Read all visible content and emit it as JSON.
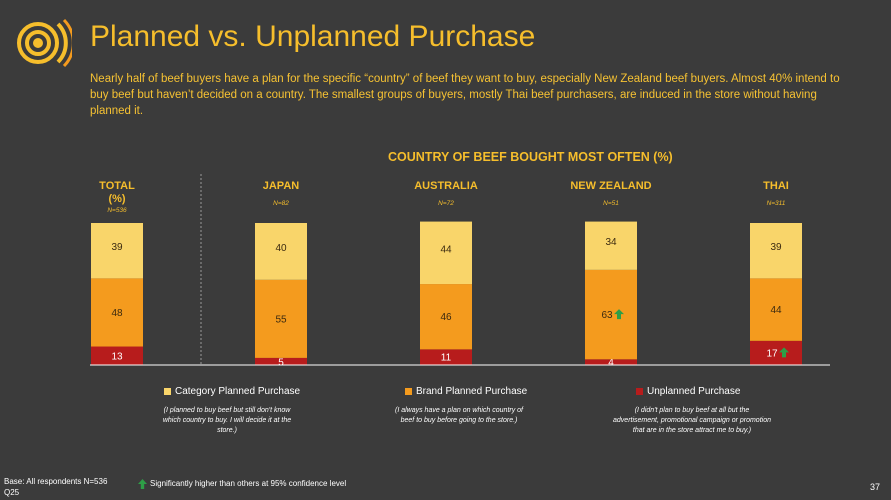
{
  "header": {
    "title": "Planned vs. Unplanned Purchase",
    "intro": "Nearly half of beef buyers have a plan for the specific “country” of beef they want to buy, especially New Zealand beef buyers.  Almost 40% intend to buy beef but haven’t decided on a country. The smallest groups of buyers, mostly Thai beef purchasers, are induced in the store without having planned it."
  },
  "chart_heading": "COUNTRY OF BEEF BOUGHT MOST OFTEN (%)",
  "colors": {
    "background": "#3b3b3b",
    "category": "#f9d56a",
    "brand": "#f49b1e",
    "unplanned": "#b71c1c",
    "accent": "#f6be2c",
    "sig_arrow": "#2e9e47"
  },
  "chart_data": {
    "type": "bar",
    "stacked": true,
    "title": "COUNTRY OF BEEF BOUGHT MOST OFTEN (%)",
    "categories": [
      "TOTAL (%)",
      "JAPAN",
      "AUSTRALIA",
      "NEW ZEALAND",
      "THAI"
    ],
    "category_labels": [
      {
        "name": "TOTAL",
        "sub": "(%)",
        "n": "N=536"
      },
      {
        "name": "JAPAN",
        "sub": "",
        "n": "N=82"
      },
      {
        "name": "AUSTRALIA",
        "sub": "",
        "n": "N=72"
      },
      {
        "name": "NEW ZEALAND",
        "sub": "",
        "n": "N=51"
      },
      {
        "name": "THAI",
        "sub": "",
        "n": "N=311"
      }
    ],
    "series": [
      {
        "name": "Unplanned Purchase",
        "values": [
          13,
          5,
          11,
          4,
          17
        ],
        "significant": [
          false,
          false,
          false,
          false,
          true
        ]
      },
      {
        "name": "Brand Planned Purchase",
        "values": [
          48,
          55,
          46,
          63,
          44
        ],
        "significant": [
          false,
          false,
          false,
          true,
          false
        ]
      },
      {
        "name": "Category Planned Purchase",
        "values": [
          39,
          40,
          44,
          34,
          39
        ],
        "significant": [
          false,
          false,
          false,
          false,
          false
        ]
      }
    ],
    "ylim": [
      0,
      100
    ]
  },
  "legend": {
    "category_label": "Category Planned Purchase",
    "category_desc": "(I planned to buy beef but still don't know which country to buy. I will decide it at the store.)",
    "brand_label": "Brand Planned Purchase",
    "brand_desc": "(I always have a plan on which country of beef to buy before going to the store.)",
    "unplanned_label": "Unplanned Purchase",
    "unplanned_desc": "(I didn't plan to buy beef at all but the advertisement, promotional campaign or promotion that are in the store attract me to buy.)"
  },
  "footer": {
    "base": "Base: All respondents N=536",
    "question": "Q25",
    "sig_note": "Significantly higher than others at 95% confidence level",
    "page_number": "37"
  }
}
